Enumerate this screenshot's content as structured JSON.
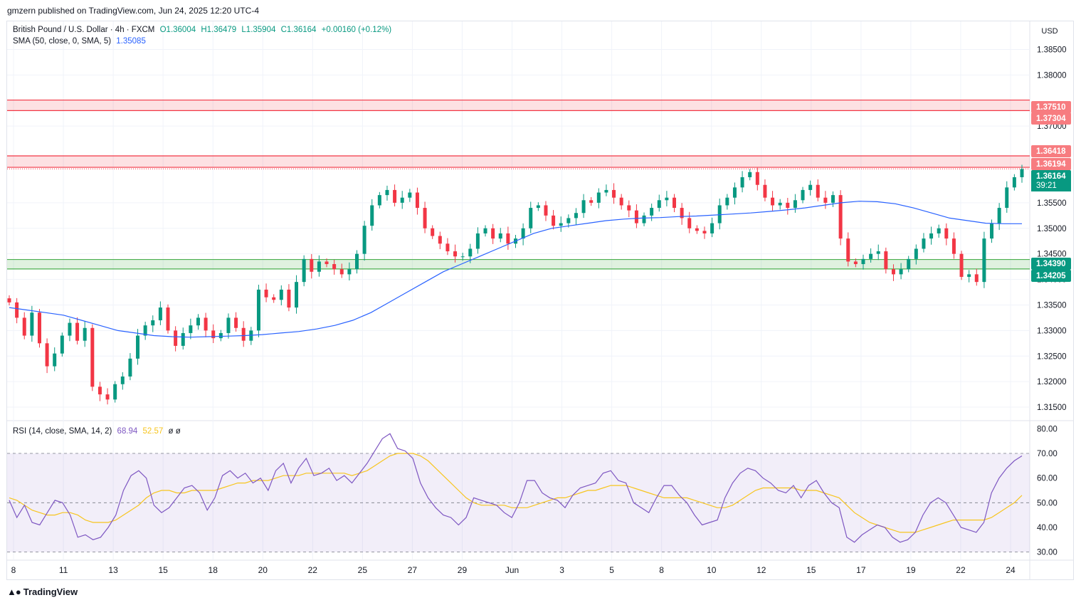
{
  "header": {
    "published": "gmzern published on TradingView.com, Jun 24, 2025 12:20 UTC-4"
  },
  "legend": {
    "symbol": "British Pound / U.S. Dollar · 4h · FXCM",
    "o": "O1.36004",
    "h": "H1.36479",
    "l": "L1.35904",
    "c": "C1.36164",
    "chg": "+0.00160 (+0.12%)",
    "sma_label": "SMA (50, close, 0, SMA, 5)",
    "sma_value": "1.35085",
    "rsi_label": "RSI (14, close, SMA, 14, 2)",
    "rsi_value": "68.94",
    "rsi_ma_value": "52.57",
    "rsi_extra": "ø ø"
  },
  "currency": "USD",
  "footer": {
    "logo_text": "TradingView"
  },
  "colors": {
    "up": "#089981",
    "down": "#f23645",
    "sma": "#2962ff",
    "rsi": "#7e57c2",
    "rsi_ma": "#f7c51f",
    "resistance": "#f23645",
    "support": "#4caf50"
  },
  "chart_data": [
    {
      "type": "candlestick",
      "timeframe": "4h",
      "price_axis": {
        "ticks": [
          "1.38500",
          "1.38000",
          "1.37000",
          "1.35500",
          "1.35000",
          "1.34500",
          "1.34000",
          "1.33500",
          "1.33000",
          "1.32500",
          "1.32000",
          "1.31500"
        ],
        "ylim": [
          1.3125,
          1.3905
        ]
      },
      "x_axis": {
        "labels": [
          "8",
          "11",
          "13",
          "15",
          "18",
          "20",
          "22",
          "25",
          "27",
          "29",
          "Jun",
          "3",
          "5",
          "8",
          "10",
          "12",
          "15",
          "17",
          "19",
          "22",
          "24"
        ]
      },
      "price_labels": [
        {
          "text": "1.37510",
          "value": 1.3751,
          "kind": "resistance"
        },
        {
          "text": "1.37304",
          "value": 1.37304,
          "kind": "resistance"
        },
        {
          "text": "1.36418",
          "value": 1.36418,
          "kind": "resistance"
        },
        {
          "text": "1.36194",
          "value": 1.36194,
          "kind": "resistance"
        },
        {
          "text": "1.36164",
          "value": 1.36164,
          "kind": "last"
        },
        {
          "text": "39:21",
          "kind": "countdown"
        },
        {
          "text": "1.34390",
          "value": 1.3439,
          "kind": "support"
        },
        {
          "text": "1.34205",
          "value": 1.34205,
          "kind": "support"
        }
      ],
      "zones": [
        {
          "kind": "resistance",
          "from": 1.37304,
          "to": 1.3751
        },
        {
          "kind": "resistance",
          "from": 1.36194,
          "to": 1.36418
        },
        {
          "kind": "support",
          "from": 1.34205,
          "to": 1.3439
        }
      ],
      "last_price": 1.36164,
      "closes": [
        1.3355,
        1.3325,
        1.329,
        1.3335,
        1.3275,
        1.323,
        1.3255,
        1.329,
        1.3315,
        1.328,
        1.3305,
        1.319,
        1.3175,
        1.3165,
        1.3195,
        1.321,
        1.3245,
        1.329,
        1.331,
        1.332,
        1.3345,
        1.33,
        1.327,
        1.3295,
        1.331,
        1.3325,
        1.33,
        1.3285,
        1.3295,
        1.3325,
        1.3305,
        1.328,
        1.33,
        1.338,
        1.3365,
        1.336,
        1.338,
        1.3345,
        1.3395,
        1.344,
        1.3415,
        1.3435,
        1.343,
        1.342,
        1.341,
        1.342,
        1.345,
        1.3505,
        1.3545,
        1.3565,
        1.3575,
        1.355,
        1.356,
        1.357,
        1.354,
        1.35,
        1.3485,
        1.347,
        1.3455,
        1.3445,
        1.3445,
        1.346,
        1.349,
        1.35,
        1.348,
        1.349,
        1.347,
        1.348,
        1.35,
        1.354,
        1.3545,
        1.3525,
        1.3505,
        1.351,
        1.352,
        1.353,
        1.3555,
        1.355,
        1.357,
        1.3575,
        1.356,
        1.3545,
        1.3535,
        1.351,
        1.3525,
        1.354,
        1.3555,
        1.356,
        1.354,
        1.352,
        1.35,
        1.3495,
        1.349,
        1.351,
        1.3545,
        1.356,
        1.358,
        1.36,
        1.361,
        1.3585,
        1.356,
        1.3545,
        1.355,
        1.354,
        1.3555,
        1.3575,
        1.3585,
        1.356,
        1.355,
        1.3565,
        1.348,
        1.3435,
        1.343,
        1.344,
        1.345,
        1.3455,
        1.342,
        1.341,
        1.342,
        1.344,
        1.346,
        1.348,
        1.349,
        1.35,
        1.348,
        1.345,
        1.3405,
        1.341,
        1.3395,
        1.348,
        1.351,
        1.354,
        1.358,
        1.36,
        1.3616
      ],
      "sma_50": [
        1.3345,
        1.334,
        1.3335,
        1.333,
        1.332,
        1.331,
        1.33,
        1.3295,
        1.329,
        1.3288,
        1.3287,
        1.3288,
        1.3289,
        1.329,
        1.3292,
        1.3295,
        1.3298,
        1.3303,
        1.331,
        1.332,
        1.3335,
        1.3355,
        1.3375,
        1.3395,
        1.3415,
        1.343,
        1.3445,
        1.346,
        1.3475,
        1.349,
        1.35,
        1.3505,
        1.351,
        1.3515,
        1.3518,
        1.352,
        1.3521,
        1.3523,
        1.3524,
        1.3526,
        1.3528,
        1.353,
        1.3533,
        1.3536,
        1.354,
        1.3545,
        1.355,
        1.3553,
        1.3552,
        1.3548,
        1.354,
        1.353,
        1.352,
        1.3515,
        1.351,
        1.3509,
        1.3509
      ],
      "sma_step": 2.4
    },
    {
      "type": "line",
      "indicator": "RSI",
      "y_axis": {
        "ticks": [
          "80.00",
          "70.00",
          "60.00",
          "50.00",
          "40.00",
          "30.00"
        ],
        "ylim": [
          27,
          83
        ]
      },
      "levels": [
        70,
        50,
        30
      ],
      "series": [
        {
          "name": "RSI",
          "values": [
            51,
            44,
            49,
            42,
            41,
            46,
            51,
            50,
            45,
            36,
            37,
            35,
            36,
            40,
            45,
            55,
            61,
            63,
            60,
            49,
            46,
            48,
            52,
            56,
            57,
            54,
            47,
            52,
            61,
            63,
            60,
            62,
            58,
            60,
            55,
            63,
            66,
            58,
            64,
            68,
            61,
            62,
            64,
            59,
            61,
            58,
            62,
            66,
            71,
            76,
            78,
            72,
            71,
            68,
            58,
            52,
            48,
            45,
            44,
            41,
            44,
            52,
            51,
            50,
            49,
            46,
            44,
            50,
            59,
            59,
            54,
            52,
            51,
            48,
            53,
            56,
            57,
            58,
            62,
            63,
            59,
            58,
            50,
            48,
            46,
            52,
            57,
            57,
            53,
            50,
            45,
            41,
            42,
            43,
            52,
            58,
            62,
            64,
            63,
            60,
            58,
            55,
            54,
            57,
            52,
            57,
            59,
            54,
            50,
            48,
            36,
            34,
            37,
            39,
            41,
            40,
            36,
            34,
            35,
            38,
            45,
            50,
            52,
            50,
            45,
            40,
            39,
            38,
            42,
            54,
            60,
            64,
            67,
            69
          ]
        },
        {
          "name": "RSI-MA",
          "values": [
            52,
            51,
            49,
            47,
            46,
            45,
            45,
            46,
            46,
            45,
            43,
            42,
            42,
            42,
            43,
            45,
            47,
            49,
            52,
            54,
            55,
            55,
            54,
            54,
            55,
            55,
            55,
            55,
            56,
            57,
            58,
            58,
            59,
            59,
            59,
            60,
            61,
            61,
            61,
            62,
            62,
            62,
            62,
            62,
            62,
            61,
            62,
            63,
            65,
            67,
            69,
            70,
            70,
            70,
            69,
            67,
            64,
            61,
            58,
            55,
            52,
            50,
            49,
            49,
            49,
            49,
            48,
            48,
            48,
            49,
            50,
            51,
            52,
            52,
            53,
            54,
            55,
            55,
            56,
            57,
            57,
            57,
            56,
            55,
            54,
            53,
            52,
            52,
            52,
            52,
            51,
            50,
            49,
            48,
            48,
            49,
            51,
            53,
            55,
            56,
            56,
            56,
            56,
            56,
            55,
            55,
            55,
            54,
            53,
            52,
            49,
            46,
            44,
            42,
            41,
            40,
            39,
            38,
            38,
            38,
            39,
            40,
            41,
            42,
            43,
            43,
            43,
            43,
            43,
            44,
            46,
            48,
            50,
            53
          ]
        }
      ]
    }
  ]
}
